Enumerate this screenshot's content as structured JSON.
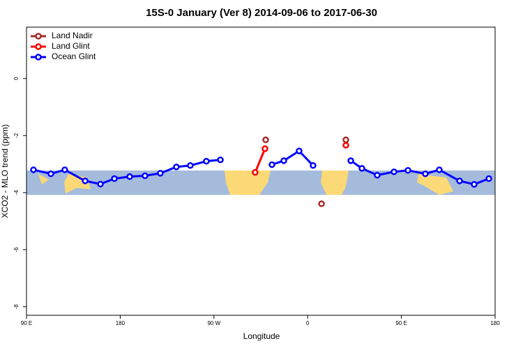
{
  "chart_data": {
    "type": "line",
    "title": "15S-0 January (Ver 8)   2014-09-06 to 2017-06-30",
    "x_label": "Longitude",
    "y_label": "XCO2 - MLO trend (ppm)",
    "xlim": [
      90,
      540
    ],
    "ylim": [
      -8.3,
      1.8
    ],
    "xticks": [
      {
        "value": 90,
        "label": "90 E"
      },
      {
        "value": 180,
        "label": "180"
      },
      {
        "value": 270,
        "label": "90 W"
      },
      {
        "value": 360,
        "label": "0"
      },
      {
        "value": 450,
        "label": "90 E"
      },
      {
        "value": 540,
        "label": "180"
      }
    ],
    "yticks": [
      0,
      -2,
      -4,
      -6,
      -8
    ],
    "legend": "top-left",
    "series": [
      {
        "name": "Land Nadir",
        "color": "#a52a2a",
        "show_line": false,
        "x": [
          319.7,
          373.3,
          396.7
        ],
        "values": [
          -2.15,
          -4.39,
          -2.15
        ]
      },
      {
        "name": "Land Glint",
        "color": "#ff0000",
        "show_line": true,
        "x": [
          309.6,
          319,
          360,
          396.7
        ],
        "values": [
          -3.29,
          -2.46,
          null,
          -2.34
        ]
      },
      {
        "name": "Ocean Glint",
        "color": "#0000ff",
        "show_line": true,
        "x": [
          96.7,
          113.4,
          126.8,
          146.3,
          161,
          174.4,
          189.1,
          203.8,
          218.5,
          233.9,
          247.3,
          262.7,
          276.2,
          300,
          325.7,
          337.1,
          351.8,
          365.2,
          385,
          401.4,
          412.1,
          426.8,
          442.9,
          456.3,
          473,
          486.4,
          505.9,
          519.9,
          534
        ],
        "values": [
          -3.2,
          -3.34,
          -3.2,
          -3.59,
          -3.7,
          -3.51,
          -3.44,
          -3.41,
          -3.32,
          -3.1,
          -3.05,
          -2.9,
          -2.85,
          null,
          -3.02,
          -2.88,
          -2.54,
          -3.05,
          null,
          -2.88,
          -3.15,
          -3.39,
          -3.27,
          -3.22,
          -3.34,
          -3.2,
          -3.59,
          -3.71,
          -3.51
        ]
      }
    ]
  }
}
